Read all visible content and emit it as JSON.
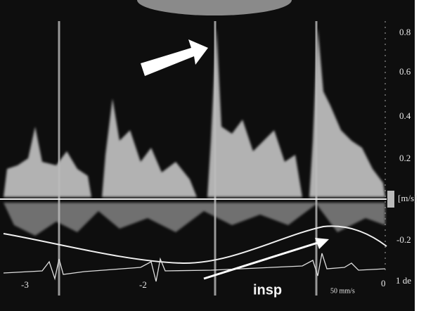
{
  "scale": {
    "labels": [
      "0.8",
      "0.6",
      "0.4",
      "0.2"
    ],
    "unit": "[m/s]",
    "negative": "-0.2"
  },
  "time_labels": [
    "-3",
    "-2",
    "0"
  ],
  "side_label": "1 de",
  "annotation": "insp",
  "sweep_speed": "50 mm/s"
}
